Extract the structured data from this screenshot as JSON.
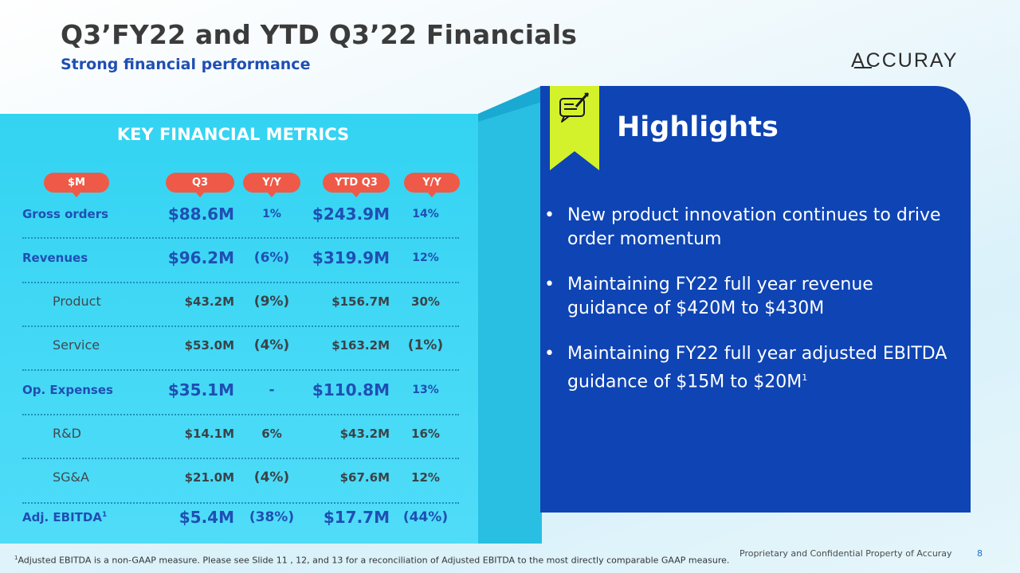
{
  "header": {
    "title": "Q3’FY22 and YTD Q3’22 Financials",
    "subtitle": "Strong financial performance",
    "logo_text": "ACCURAY"
  },
  "metrics": {
    "heading": "KEY FINANCIAL METRICS",
    "columns": [
      "$M",
      "Q3",
      "Y/Y",
      "YTD Q3",
      "Y/Y"
    ],
    "rows": [
      {
        "label": "Gross orders",
        "q3": "$88.6M",
        "q3_yy": "1%",
        "ytd": "$243.9M",
        "ytd_yy": "14%"
      },
      {
        "label": "Revenues",
        "q3": "$96.2M",
        "q3_yy": "(6%)",
        "ytd": "$319.9M",
        "ytd_yy": "12%"
      },
      {
        "label": "Product",
        "q3": "$43.2M",
        "q3_yy": "(9%)",
        "ytd": "$156.7M",
        "ytd_yy": "30%"
      },
      {
        "label": "Service",
        "q3": "$53.0M",
        "q3_yy": "(4%)",
        "ytd": "$163.2M",
        "ytd_yy": "(1%)"
      },
      {
        "label": "Op. Expenses",
        "q3": "$35.1M",
        "q3_yy": "-",
        "ytd": "$110.8M",
        "ytd_yy": "13%"
      },
      {
        "label": "R&D",
        "q3": "$14.1M",
        "q3_yy": "6%",
        "ytd": "$43.2M",
        "ytd_yy": "16%"
      },
      {
        "label": "SG&A",
        "q3": "$21.0M",
        "q3_yy": "(4%)",
        "ytd": "$67.6M",
        "ytd_yy": "12%"
      },
      {
        "label": "Adj. EBITDA",
        "label_sup": "1",
        "q3": "$5.4M",
        "q3_yy": "(38%)",
        "ytd": "$17.7M",
        "ytd_yy": "(44%)"
      }
    ]
  },
  "highlights": {
    "title": "Highlights",
    "items": [
      {
        "text": "New product innovation continues to drive order momentum"
      },
      {
        "text": "Maintaining FY22 full year revenue guidance of $420M to $430M"
      },
      {
        "text": "Maintaining FY22 full year adjusted EBITDA guidance of $15M to $20M",
        "sup": "1"
      }
    ]
  },
  "footer": {
    "footnote_sup": "1",
    "footnote": "Adjusted EBITDA is a non-GAAP measure.  Please see Slide 11 , 12, and 13 for a reconciliation of Adjusted EBITDA to the most directly comparable GAAP measure.",
    "confidential": "Proprietary and Confidential Property of Accuray",
    "page_number": "8"
  },
  "colors": {
    "brand_blue": "#1f4fb3",
    "panel_cyan": "#3fd6f5",
    "highlights_blue": "#0e44b4",
    "pill_red": "#ee5a47",
    "flag_lime": "#d4f22b"
  }
}
